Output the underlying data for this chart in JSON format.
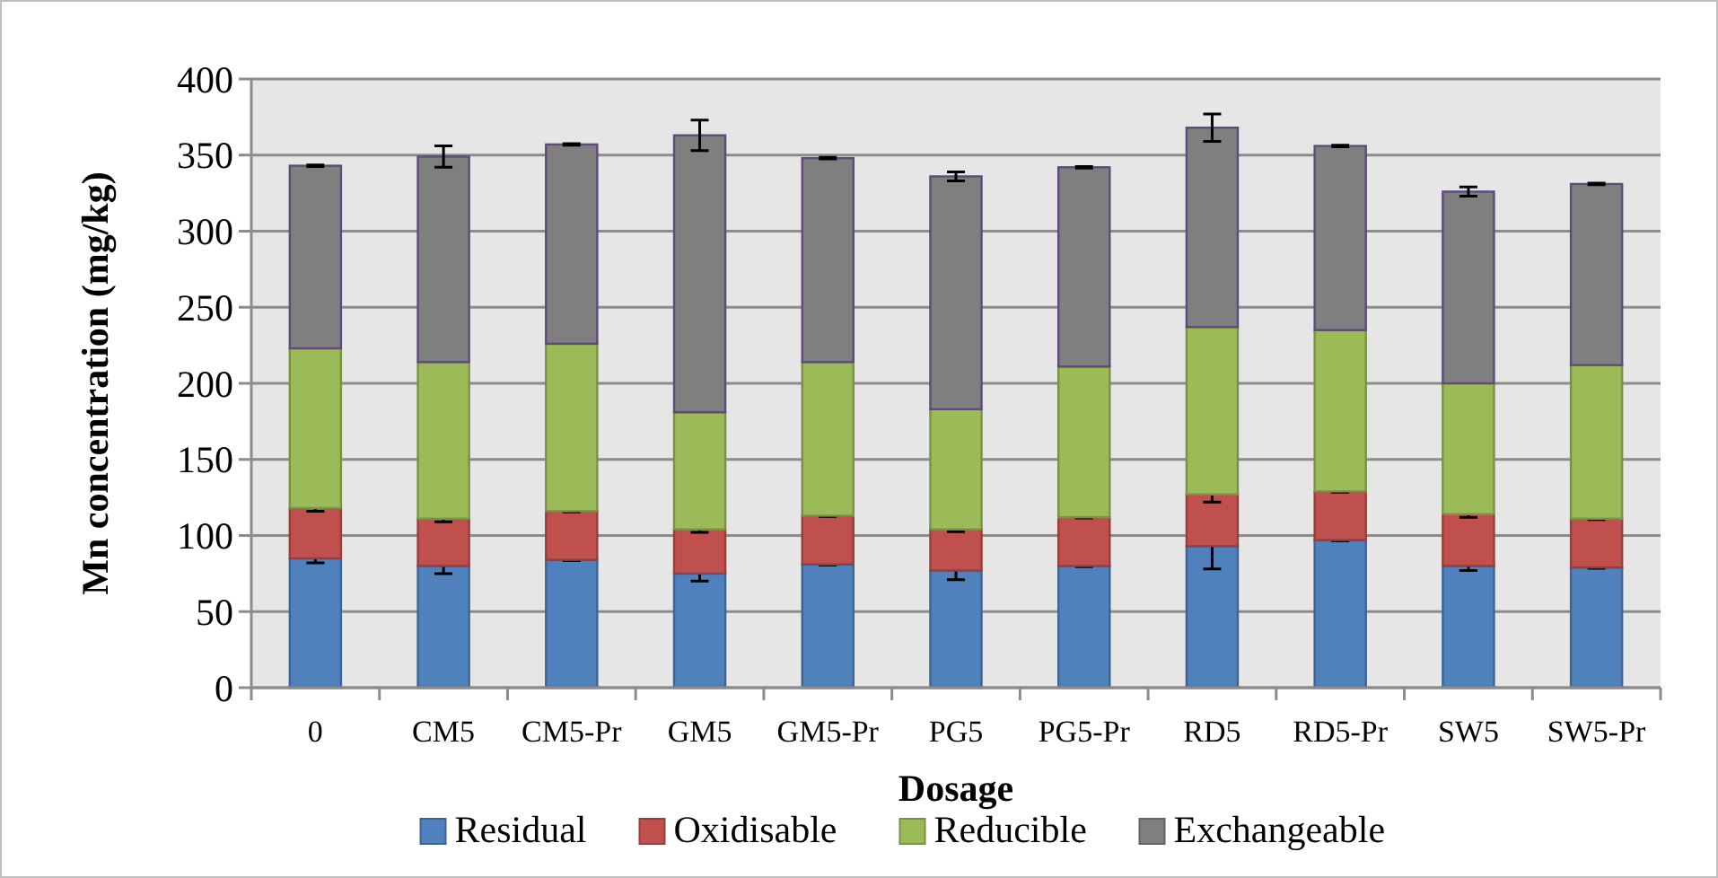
{
  "chart_data": {
    "type": "bar",
    "stacked": true,
    "xlabel": "Dosage",
    "ylabel": "Mn concentration (mg/kg)",
    "categories": [
      "0",
      "CM5",
      "CM5-Pr",
      "GM5",
      "GM5-Pr",
      "PG5",
      "PG5-Pr",
      "RD5",
      "RD5-Pr",
      "SW5",
      "SW5-Pr"
    ],
    "series": [
      {
        "name": "Residual",
        "color": "#4f81bd",
        "values": [
          85,
          80,
          84,
          75,
          81,
          77,
          80,
          93,
          97,
          80,
          79
        ],
        "errors": [
          3,
          5,
          0.5,
          5,
          0.5,
          6,
          0.5,
          15,
          0.5,
          3,
          0.5
        ]
      },
      {
        "name": "Oxidisable",
        "color": "#c0504d",
        "values": [
          33,
          31,
          32,
          29,
          32,
          27,
          32,
          34,
          32,
          34,
          32
        ],
        "errors": [
          2,
          2,
          0.5,
          2,
          0.5,
          1.5,
          0.5,
          5,
          0.5,
          2,
          0.5
        ]
      },
      {
        "name": "Reducible",
        "color": "#9bbb59",
        "values": [
          105,
          103,
          110,
          77,
          101,
          79,
          99,
          110,
          106,
          86,
          101
        ]
      },
      {
        "name": "Exchangeable",
        "color": "#7f7f7f",
        "values": [
          120,
          135,
          131,
          182,
          134,
          153,
          131,
          131,
          121,
          126,
          119
        ],
        "errors": [
          0.5,
          7,
          0.5,
          10,
          0.5,
          3,
          0.5,
          9,
          0.5,
          3,
          0.5
        ]
      }
    ],
    "ylim": [
      0,
      400
    ],
    "yticks": [
      0,
      50,
      100,
      150,
      200,
      250,
      300,
      350,
      400
    ],
    "grid": "y",
    "legend": "bottom"
  }
}
